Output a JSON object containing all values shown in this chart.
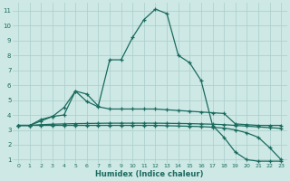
{
  "xlabel": "Humidex (Indice chaleur)",
  "xlim": [
    -0.5,
    23.5
  ],
  "ylim": [
    0.8,
    11.5
  ],
  "yticks": [
    1,
    2,
    3,
    4,
    5,
    6,
    7,
    8,
    9,
    10,
    11
  ],
  "xticks": [
    0,
    1,
    2,
    3,
    4,
    5,
    6,
    7,
    8,
    9,
    10,
    11,
    12,
    13,
    14,
    15,
    16,
    17,
    18,
    19,
    20,
    21,
    22,
    23
  ],
  "bg_color": "#cde8e5",
  "line_color": "#1a6b5e",
  "grid_color": "#aaceca",
  "line1_x": [
    0,
    1,
    2,
    3,
    4,
    5,
    6,
    7,
    8,
    9,
    10,
    11,
    12,
    13,
    14,
    15,
    16,
    17,
    18,
    19,
    20,
    21,
    22,
    23
  ],
  "line1_y": [
    3.3,
    3.3,
    3.7,
    3.9,
    4.0,
    5.6,
    5.4,
    4.6,
    7.7,
    7.7,
    9.2,
    10.4,
    11.1,
    10.8,
    8.0,
    7.5,
    6.3,
    3.3,
    2.5,
    1.5,
    1.0,
    0.9,
    0.9,
    0.9
  ],
  "line2_x": [
    0,
    1,
    2,
    3,
    4,
    5,
    6,
    7,
    8,
    9,
    10,
    11,
    12,
    13,
    14,
    15,
    16,
    17,
    18,
    19,
    20,
    21,
    22,
    23
  ],
  "line2_y": [
    3.3,
    3.3,
    3.6,
    3.9,
    4.5,
    5.6,
    4.9,
    4.55,
    4.4,
    4.4,
    4.4,
    4.4,
    4.4,
    4.35,
    4.3,
    4.25,
    4.2,
    4.15,
    4.1,
    3.4,
    3.35,
    3.3,
    3.3,
    3.3
  ],
  "line3_x": [
    0,
    1,
    2,
    3,
    4,
    5,
    6,
    7,
    8,
    9,
    10,
    11,
    12,
    13,
    14,
    15,
    16,
    17,
    18,
    19,
    20,
    21,
    22,
    23
  ],
  "line3_y": [
    3.3,
    3.3,
    3.35,
    3.38,
    3.4,
    3.42,
    3.43,
    3.44,
    3.45,
    3.45,
    3.45,
    3.45,
    3.45,
    3.44,
    3.43,
    3.42,
    3.4,
    3.38,
    3.35,
    3.3,
    3.25,
    3.2,
    3.15,
    3.1
  ],
  "line4_x": [
    0,
    1,
    2,
    3,
    4,
    5,
    6,
    7,
    8,
    9,
    10,
    11,
    12,
    13,
    14,
    15,
    16,
    17,
    18,
    19,
    20,
    21,
    22,
    23
  ],
  "line4_y": [
    3.3,
    3.3,
    3.3,
    3.3,
    3.3,
    3.3,
    3.3,
    3.3,
    3.3,
    3.3,
    3.3,
    3.3,
    3.3,
    3.28,
    3.26,
    3.24,
    3.22,
    3.18,
    3.12,
    3.0,
    2.8,
    2.5,
    1.8,
    1.0
  ]
}
